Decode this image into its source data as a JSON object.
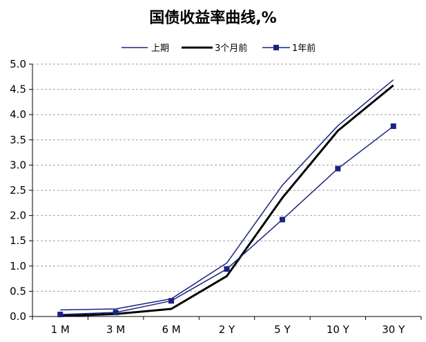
{
  "chart_data": {
    "type": "line",
    "title": "国债收益率曲线,%",
    "xlabel": "",
    "ylabel": "",
    "categories": [
      "1 M",
      "3 M",
      "6 M",
      "2 Y",
      "5 Y",
      "10 Y",
      "30 Y"
    ],
    "ylim": [
      0.0,
      5.0
    ],
    "yticks": [
      "0.0",
      "0.5",
      "1.0",
      "1.5",
      "2.0",
      "2.5",
      "3.0",
      "3.5",
      "4.0",
      "4.5",
      "5.0"
    ],
    "grid": "horizontal dashed",
    "legend_position": "top",
    "series": [
      {
        "name": "上期",
        "values": [
          0.13,
          0.15,
          0.35,
          1.06,
          2.6,
          3.78,
          4.69
        ],
        "color": "#1a237e",
        "style": "thin-line"
      },
      {
        "name": "3个月前",
        "values": [
          0.01,
          0.05,
          0.15,
          0.8,
          2.35,
          3.68,
          4.58
        ],
        "color": "#000000",
        "style": "thick-line"
      },
      {
        "name": "1年前",
        "values": [
          0.04,
          0.08,
          0.31,
          0.94,
          1.92,
          2.93,
          3.77
        ],
        "color": "#1a237e",
        "style": "line-with-square-markers"
      }
    ]
  }
}
